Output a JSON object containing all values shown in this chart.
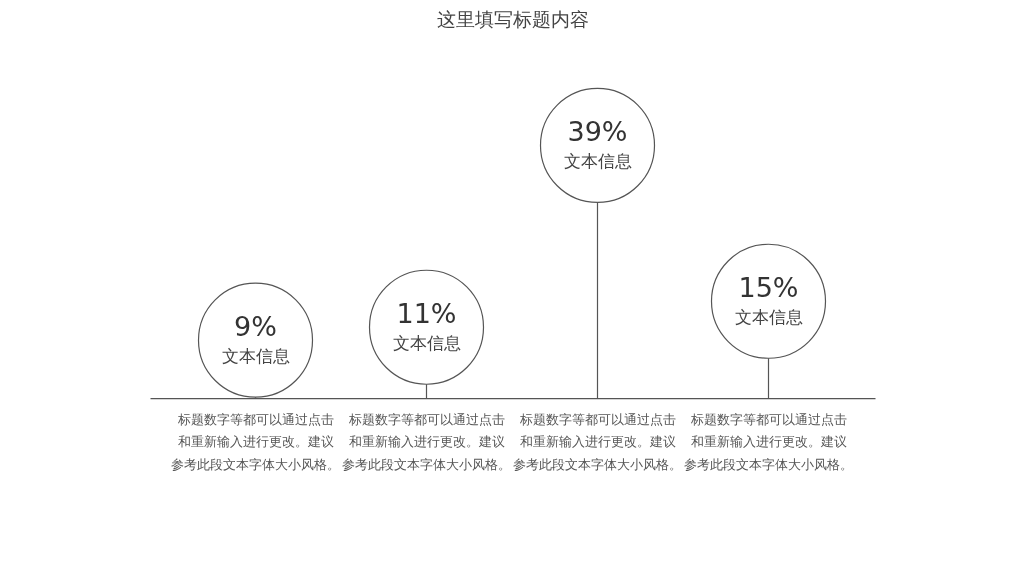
{
  "chart_data": {
    "type": "lollipop",
    "title": "这里填写标题内容",
    "categories": [
      "标题数字等都可以通过点击和重新输入进行更改。建议参考此段文本字体大小风格。",
      "标题数字等都可以通过点击和重新输入进行更改。建议参考此段文本字体大小风格。",
      "标题数字等都可以通过点击和重新输入进行更改。建议参考此段文本字体大小风格。",
      "标题数字等都可以通过点击和重新输入进行更改。建议参考此段文本字体大小风格。"
    ],
    "values": [
      9,
      11,
      39,
      15
    ],
    "value_labels": [
      "9%",
      "11%",
      "39%",
      "15%"
    ],
    "color": "#555555",
    "annotations": [
      "文本信息",
      "文本信息",
      "文本信息",
      "文本信息"
    ]
  }
}
